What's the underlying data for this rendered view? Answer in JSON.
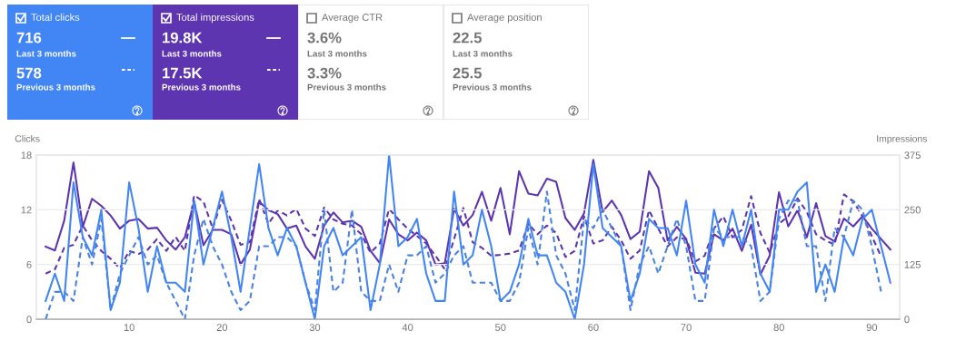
{
  "chart_data": [
    {
      "type": "other",
      "title": "Total clicks",
      "color": "#4285f4",
      "annotations": [
        "716",
        "Last 3 months",
        "578",
        "Previous 3 months"
      ]
    },
    {
      "type": "other",
      "title": "Total impressions",
      "color": "#5e35b1",
      "annotations": [
        "19.8K",
        "Last 3 months",
        "17.5K",
        "Previous 3 months"
      ]
    },
    {
      "type": "other",
      "title": "Average CTR",
      "annotations": [
        "3.6%",
        "Last 3 months",
        "3.3%",
        "Previous 3 months"
      ]
    },
    {
      "type": "other",
      "title": "Average position",
      "annotations": [
        "22.5",
        "Last 3 months",
        "25.5",
        "Previous 3 months"
      ]
    },
    {
      "type": "line",
      "ylabel": "Clicks",
      "y2label": "Impressions",
      "grid": "y",
      "legend": false,
      "x": [
        1,
        2,
        3,
        4,
        5,
        6,
        7,
        8,
        9,
        10,
        11,
        12,
        13,
        14,
        15,
        16,
        17,
        18,
        19,
        20,
        21,
        22,
        23,
        24,
        25,
        26,
        27,
        28,
        29,
        30,
        31,
        32,
        33,
        34,
        35,
        36,
        37,
        38,
        39,
        40,
        41,
        42,
        43,
        44,
        45,
        46,
        47,
        48,
        49,
        50,
        51,
        52,
        53,
        54,
        55,
        56,
        57,
        58,
        59,
        60,
        61,
        62,
        63,
        64,
        65,
        66,
        67,
        68,
        69,
        70,
        71,
        72,
        73,
        74,
        75,
        76,
        77,
        78,
        79,
        80,
        81,
        82,
        83,
        84,
        85,
        86,
        87,
        88,
        89,
        90,
        91,
        92
      ],
      "xlim": [
        0,
        93
      ],
      "xticks": [
        10,
        20,
        30,
        40,
        50,
        60,
        70,
        80,
        90
      ],
      "ylim": [
        0,
        18
      ],
      "yticks": [
        0,
        6,
        12,
        18
      ],
      "y2lim": [
        0,
        375
      ],
      "y2ticks": [
        0,
        125,
        250,
        375
      ],
      "series": [
        {
          "axis": "y2",
          "color": "#5e35b1",
          "line_style": "dashed",
          "values": [
            104,
            114,
            163,
            170,
            214,
            180,
            156,
            138,
            116,
            156,
            149,
            159,
            183,
            156,
            188,
            156,
            283,
            269,
            207,
            273,
            225,
            170,
            176,
            274,
            218,
            249,
            237,
            252,
            207,
            190,
            255,
            228,
            218,
            214,
            194,
            152,
            173,
            252,
            228,
            207,
            190,
            173,
            145,
            114,
            183,
            254,
            176,
            163,
            145,
            147,
            150,
            157,
            218,
            194,
            214,
            197,
            142,
            156,
            235,
            173,
            180,
            211,
            180,
            138,
            157,
            249,
            207,
            166,
            187,
            183,
            132,
            145,
            207,
            235,
            187,
            204,
            281,
            197,
            152,
            218,
            235,
            276,
            245,
            194,
            180,
            170,
            285,
            269,
            235,
            190,
            143,
            null
          ]
        },
        {
          "axis": "y",
          "color": "#4a82e0",
          "line_style": "dashed",
          "values": [
            0,
            3,
            3,
            2,
            9,
            6,
            11,
            1,
            5,
            7,
            9,
            6,
            7,
            4,
            2,
            0,
            7,
            11,
            8,
            6,
            3,
            1,
            2,
            8,
            8,
            9,
            9,
            8,
            4,
            1,
            12,
            3,
            4,
            12,
            3,
            2,
            2,
            6,
            3,
            7,
            7,
            8,
            4,
            5,
            7,
            8,
            4,
            4,
            4,
            2,
            2,
            4,
            10,
            6,
            14,
            7,
            5,
            1,
            11,
            10,
            12,
            10,
            8,
            1,
            6,
            8,
            5,
            8,
            11,
            8,
            2,
            2,
            10,
            9,
            9,
            9,
            8,
            2,
            3,
            11,
            13,
            13,
            8,
            8,
            2,
            10,
            9,
            13,
            12,
            8,
            3,
            null
          ]
        },
        {
          "axis": "y2",
          "color": "#5e35b1",
          "line_style": "solid",
          "values": [
            166,
            157,
            225,
            358,
            211,
            275,
            259,
            237,
            207,
            225,
            229,
            207,
            209,
            180,
            159,
            187,
            269,
            169,
            204,
            204,
            194,
            125,
            159,
            269,
            249,
            240,
            207,
            214,
            166,
            138,
            214,
            244,
            221,
            225,
            211,
            156,
            128,
            228,
            194,
            180,
            198,
            180,
            125,
            128,
            252,
            214,
            238,
            291,
            225,
            300,
            194,
            338,
            287,
            283,
            321,
            314,
            231,
            204,
            242,
            364,
            245,
            271,
            238,
            183,
            200,
            338,
            300,
            180,
            211,
            183,
            106,
            104,
            194,
            180,
            207,
            156,
            216,
            102,
            145,
            290,
            212,
            249,
            187,
            265,
            190,
            178,
            230,
            212,
            235,
            207,
            183,
            159
          ]
        },
        {
          "axis": "y",
          "color": "#4285f4",
          "line_style": "solid",
          "values": [
            2,
            5,
            2,
            15,
            9,
            7,
            12,
            1,
            4,
            15,
            10,
            3,
            8,
            4,
            4,
            3,
            13,
            6,
            10,
            14,
            9,
            3,
            10,
            17,
            10,
            7,
            10,
            8,
            4,
            0,
            8,
            10,
            7,
            8,
            9,
            1,
            6,
            18,
            8,
            9,
            11,
            5,
            2,
            2,
            14,
            6,
            7,
            12,
            8,
            2,
            3,
            6,
            11,
            7,
            7,
            4,
            3,
            0,
            6,
            17,
            10,
            9,
            8,
            2,
            5,
            11,
            10,
            10,
            7,
            13,
            6,
            4,
            12,
            8,
            12,
            8,
            12,
            5,
            3,
            12,
            12,
            14,
            15,
            3,
            6,
            3,
            9,
            7,
            11,
            12,
            8,
            4
          ]
        }
      ]
    }
  ]
}
